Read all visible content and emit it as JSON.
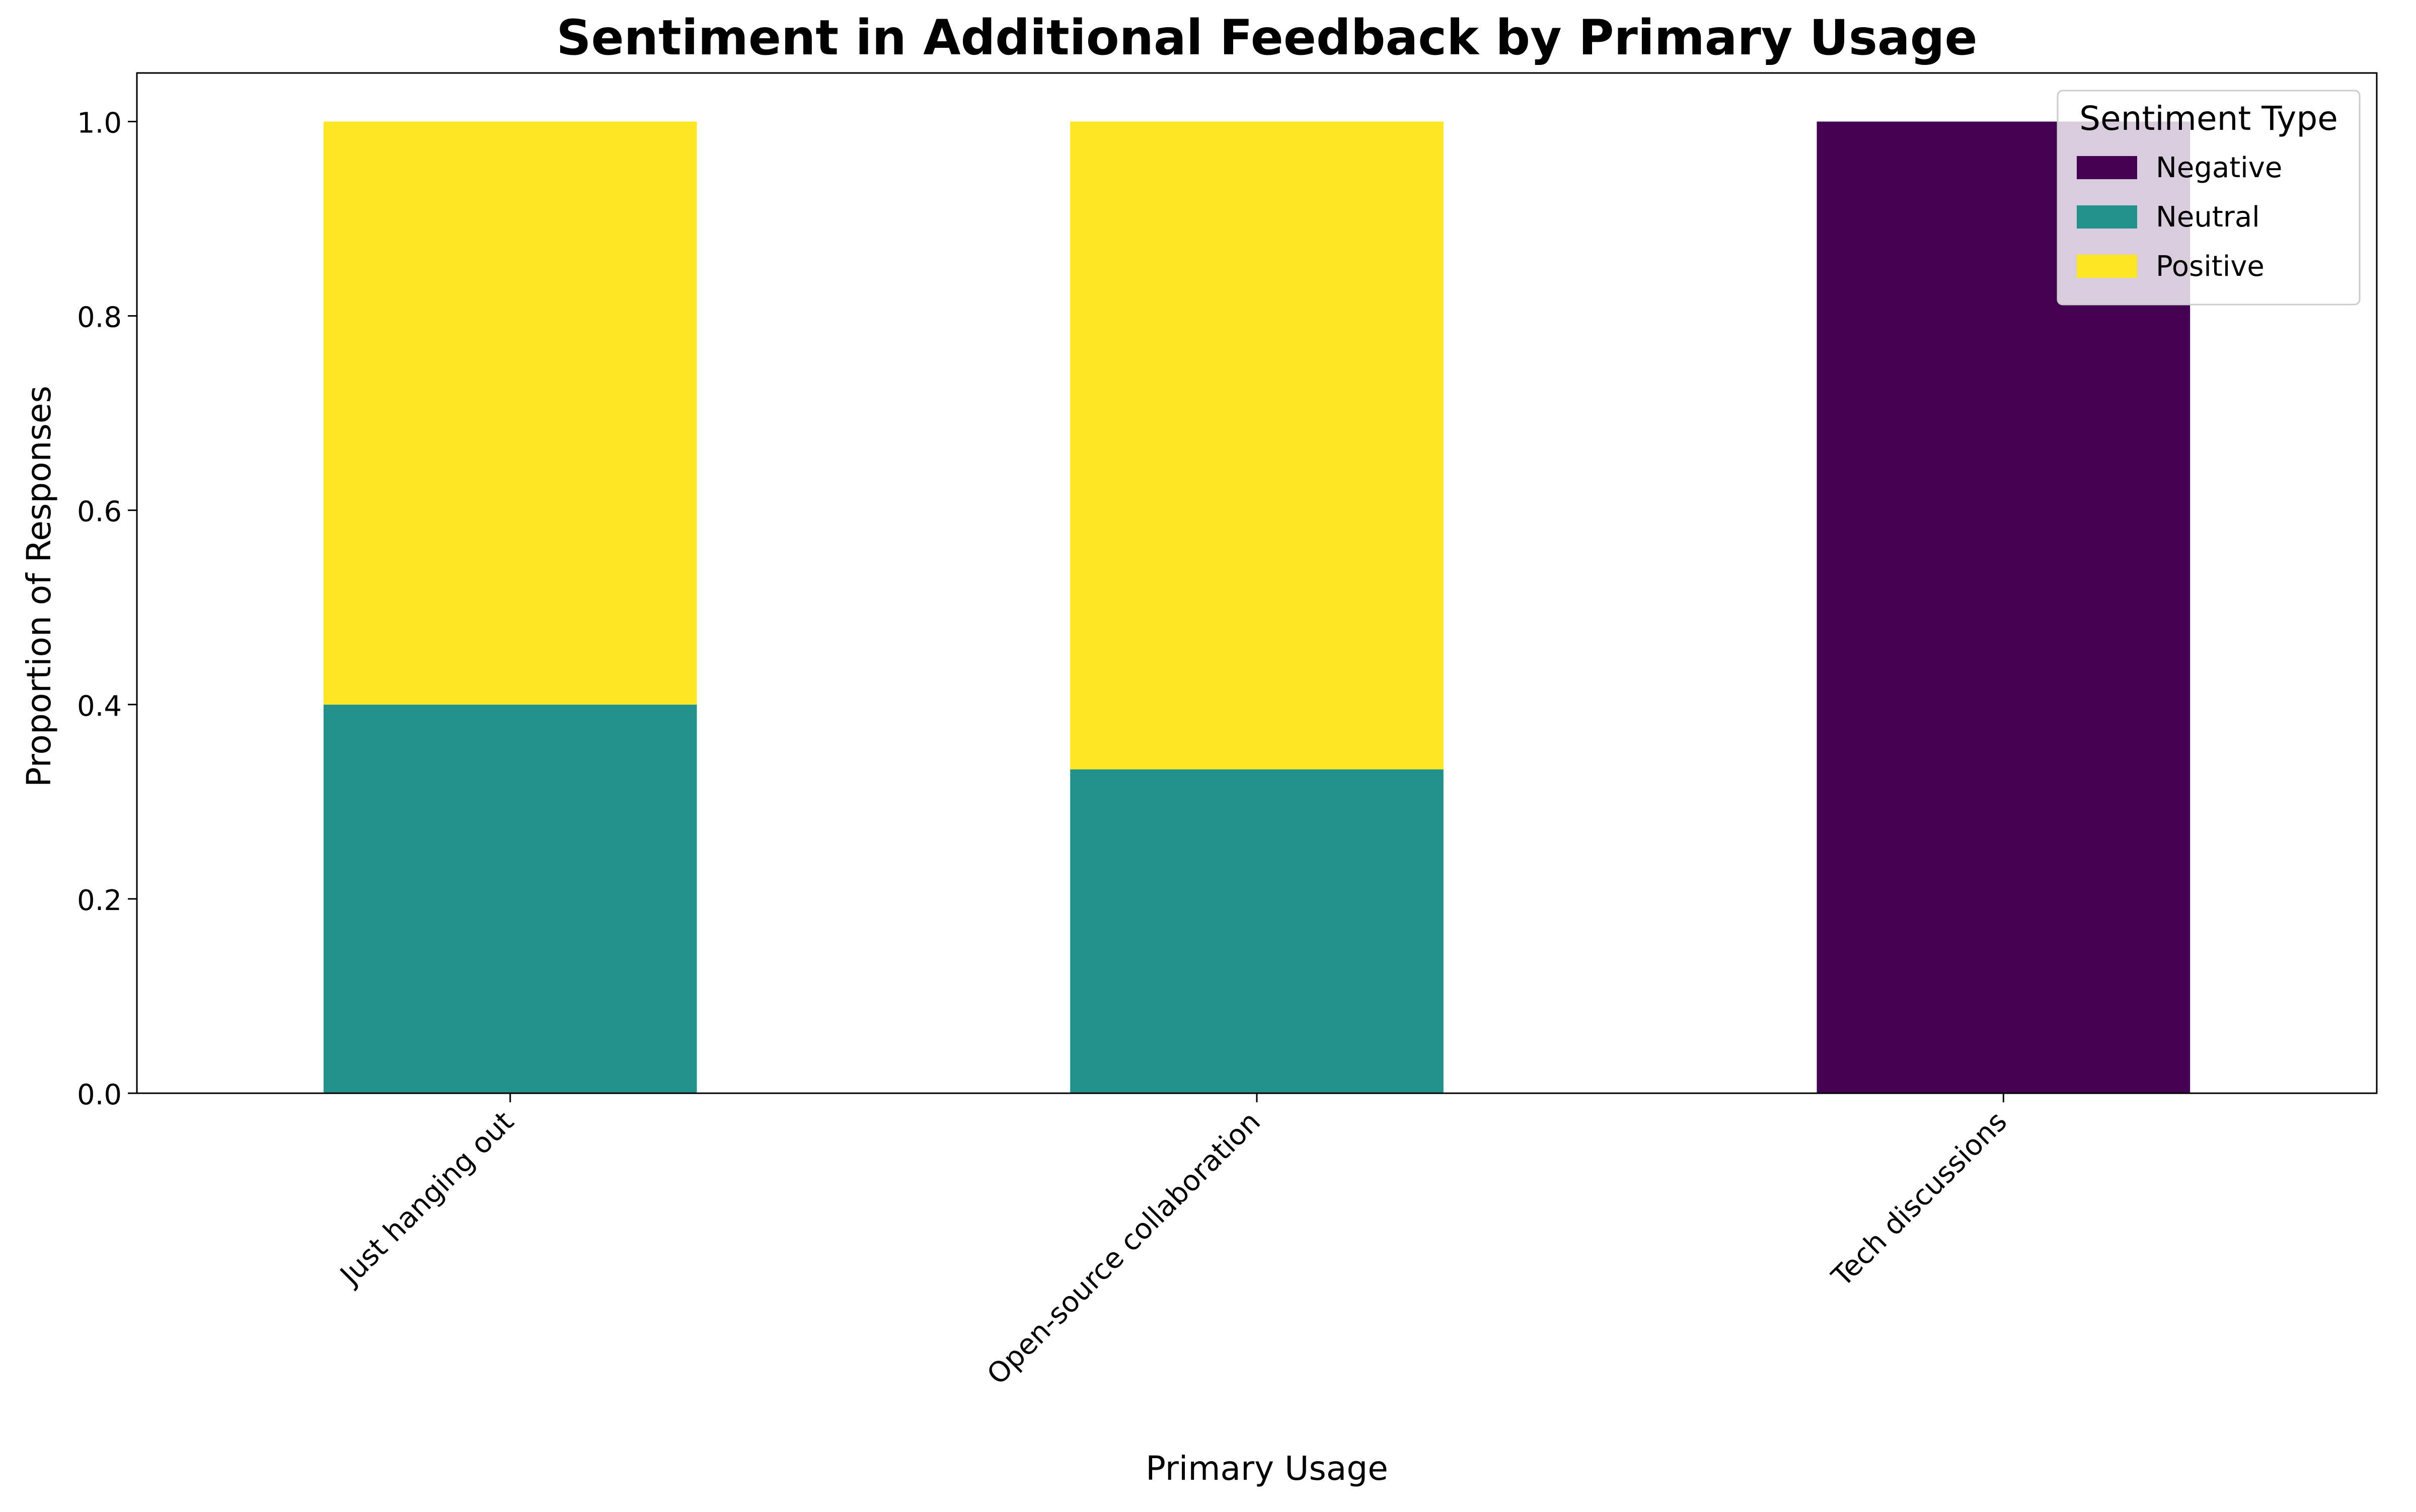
{
  "chart_data": {
    "type": "bar",
    "stacked": true,
    "title": "Sentiment in Additional Feedback by Primary Usage",
    "xlabel": "Primary Usage",
    "ylabel": "Proportion of Responses",
    "categories": [
      "Just hanging out",
      "Open-source collaboration",
      "Tech discussions"
    ],
    "series": [
      {
        "name": "Negative",
        "color": "#440154",
        "values": [
          0.0,
          0.0,
          1.0
        ]
      },
      {
        "name": "Neutral",
        "color": "#21918c",
        "values": [
          0.4,
          0.3333,
          0.0
        ]
      },
      {
        "name": "Positive",
        "color": "#fde725",
        "values": [
          0.6,
          0.6667,
          0.0
        ]
      }
    ],
    "ylim": [
      0,
      1.05
    ],
    "yticks": [
      0.0,
      0.2,
      0.4,
      0.6,
      0.8,
      1.0
    ],
    "ytick_labels": [
      "0.0",
      "0.2",
      "0.4",
      "0.6",
      "0.8",
      "1.0"
    ],
    "legend": {
      "title": "Sentiment Type",
      "placement": "top-right"
    },
    "grid": false
  }
}
